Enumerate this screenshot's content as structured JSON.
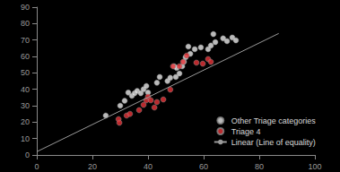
{
  "chart_data": {
    "type": "scatter",
    "xlim": [
      0,
      100
    ],
    "xticks": [
      0,
      20,
      40,
      60,
      80,
      100
    ],
    "ylim": [
      0,
      90
    ],
    "yticks": [
      0,
      10,
      20,
      30,
      40,
      50,
      60,
      70,
      80,
      90
    ],
    "grid": false,
    "legend": "bottom-right",
    "series": [
      {
        "name": "Other Triage categories",
        "type": "scatter",
        "marker": "circle",
        "color": "#e8e8e8",
        "x": [
          24.8,
          30,
          31.6,
          32.9,
          34.2,
          35.2,
          36.1,
          37.4,
          38.4,
          39.4,
          40,
          43.2,
          44.2,
          47,
          48,
          50,
          51.3,
          49.4,
          50.3,
          52.3,
          53.5,
          52.9,
          54.5,
          55.2,
          56.8,
          59,
          61.6,
          62.6,
          64.2,
          63.5,
          67,
          68.4,
          70.3,
          71.6
        ],
        "values": [
          24,
          30,
          33,
          38,
          36,
          37.6,
          39,
          37.6,
          40,
          42,
          38,
          44,
          47.5,
          45,
          47,
          47.5,
          49.6,
          54,
          53,
          54,
          59.5,
          56.7,
          66,
          61.6,
          64.4,
          65.5,
          64.4,
          66.6,
          68.7,
          73.6,
          71,
          69.3,
          71.5,
          69.8
        ]
      },
      {
        "name": "Triage 4",
        "type": "scatter",
        "marker": "circle",
        "color": "#e8343a",
        "x": [
          29.4,
          29.7,
          32.3,
          33.5,
          36.8,
          38.4,
          39.4,
          40,
          41,
          42.3,
          43.2,
          45.5,
          48,
          49,
          51.3,
          52.6,
          53.9,
          57.4,
          59.7,
          61.6,
          62.6
        ],
        "values": [
          21.8,
          19.6,
          24,
          25,
          27.3,
          30.5,
          33.3,
          35.5,
          33.3,
          28.9,
          32.2,
          33.8,
          39.8,
          54,
          54,
          56.7,
          60.5,
          56.2,
          55.6,
          58.4,
          56.7
        ]
      },
      {
        "name": "Linear (Line of equality)",
        "type": "line",
        "line_style": "solid",
        "color": "#9a9a9a",
        "x": [
          0,
          87
        ],
        "values": [
          2,
          74
        ]
      }
    ]
  }
}
